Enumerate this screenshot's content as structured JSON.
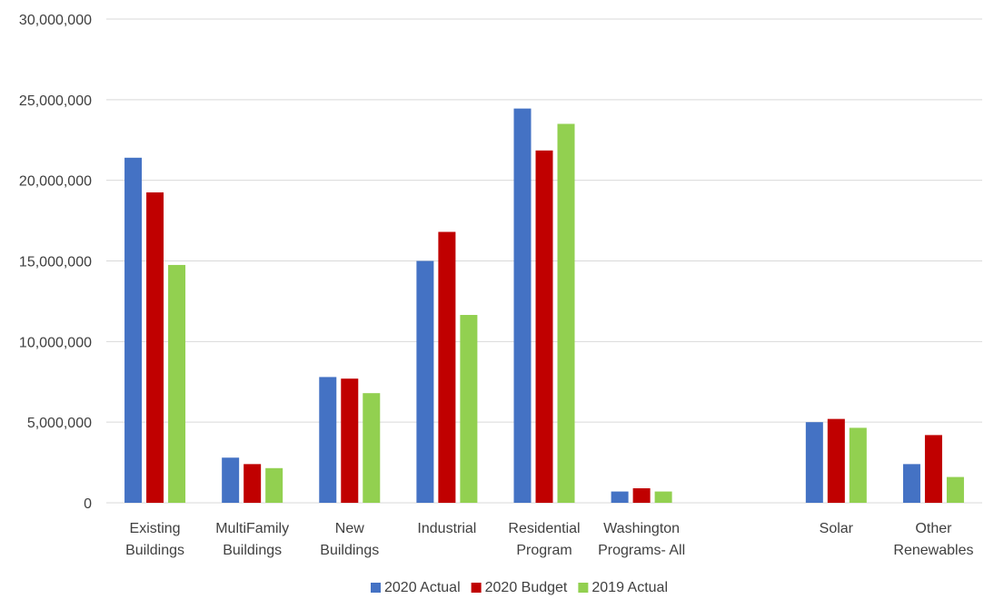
{
  "chart_data": {
    "type": "bar",
    "title": "",
    "xlabel": "",
    "ylabel": "",
    "ylim": [
      0,
      30000000
    ],
    "yticks": [
      0,
      5000000,
      10000000,
      15000000,
      20000000,
      25000000,
      30000000
    ],
    "ytick_labels": [
      "0",
      "5,000,000",
      "10,000,000",
      "15,000,000",
      "20,000,000",
      "25,000,000",
      "30,000,000"
    ],
    "grid": true,
    "legend_position": "bottom",
    "categories": [
      [
        "Existing",
        "Buildings"
      ],
      [
        "MultiFamily",
        "Buildings"
      ],
      [
        "New",
        "Buildings"
      ],
      [
        "Industrial"
      ],
      [
        "Residential",
        "Program"
      ],
      [
        "Washington",
        "Programs- All"
      ],
      [
        ""
      ],
      [
        "Solar"
      ],
      [
        "Other",
        "Renewables"
      ]
    ],
    "series": [
      {
        "name": "2020 Actual",
        "color": "#4472c4",
        "values": [
          21400000,
          2800000,
          7800000,
          15000000,
          24450000,
          700000,
          null,
          5000000,
          2400000
        ]
      },
      {
        "name": "2020 Budget",
        "color": "#c00000",
        "values": [
          19250000,
          2400000,
          7700000,
          16800000,
          21850000,
          900000,
          null,
          5200000,
          4200000
        ]
      },
      {
        "name": "2019 Actual",
        "color": "#92d050",
        "values": [
          14750000,
          2150000,
          6800000,
          11650000,
          23500000,
          700000,
          null,
          4650000,
          1600000
        ]
      }
    ]
  }
}
